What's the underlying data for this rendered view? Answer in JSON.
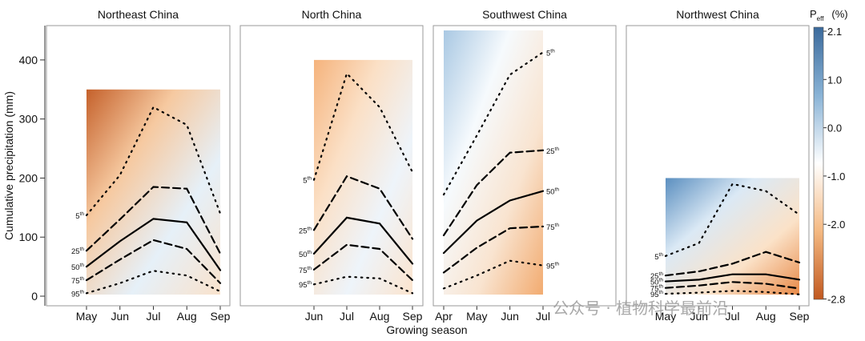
{
  "figure": {
    "ylabel": "Cumulative precipitation (mm)",
    "xlabel": "Growing season",
    "watermark": "公众号 · 植物科学最前沿",
    "yticks": [
      0,
      100,
      200,
      300,
      400
    ]
  },
  "legend": {
    "title_main": "P",
    "title_sub": "eff",
    "title_unit": "(%)",
    "ticks": [
      "2.1",
      "1.0",
      "0.0",
      "-1.0",
      "-2.0",
      "-2.8"
    ],
    "colors": [
      "#3b6a9c",
      "#89b3d6",
      "#ffffff",
      "#f4b982",
      "#c1581f"
    ]
  },
  "chart_data": [
    {
      "type": "line",
      "title": "Northeast China",
      "x": [
        "May",
        "Jun",
        "Jul",
        "Aug",
        "Sep"
      ],
      "ylim": [
        0,
        450
      ],
      "field_y_max": 350,
      "field_colors": [
        "#c5612b",
        "#f6c9a0",
        "#e6f0f8",
        "#f9e2cc"
      ],
      "series": [
        {
          "name": "5th",
          "style": "dotted",
          "values": [
            137,
            205,
            320,
            290,
            140
          ]
        },
        {
          "name": "25th",
          "style": "dashed",
          "values": [
            77,
            130,
            185,
            182,
            72
          ]
        },
        {
          "name": "50th",
          "style": "solid",
          "values": [
            50,
            93,
            131,
            125,
            44
          ]
        },
        {
          "name": "75th",
          "style": "dashed",
          "values": [
            27,
            62,
            95,
            80,
            22
          ]
        },
        {
          "name": "95th",
          "style": "dotted",
          "values": [
            5,
            22,
            43,
            35,
            8
          ]
        }
      ]
    },
    {
      "type": "line",
      "title": "North China",
      "x": [
        "Jun",
        "Jul",
        "Aug",
        "Sep"
      ],
      "ylim": [
        0,
        450
      ],
      "field_y_max": 400,
      "field_colors": [
        "#f5b37c",
        "#fbe0c6",
        "#eef4fa",
        "#fbe4ce"
      ],
      "series": [
        {
          "name": "5th",
          "style": "dotted",
          "values": [
            197,
            377,
            320,
            210
          ]
        },
        {
          "name": "25th",
          "style": "dashed",
          "values": [
            112,
            203,
            182,
            97
          ]
        },
        {
          "name": "50th",
          "style": "solid",
          "values": [
            72,
            133,
            123,
            55
          ]
        },
        {
          "name": "75th",
          "style": "dashed",
          "values": [
            45,
            87,
            80,
            27
          ]
        },
        {
          "name": "95th",
          "style": "dotted",
          "values": [
            20,
            33,
            30,
            5
          ]
        }
      ]
    },
    {
      "type": "line",
      "title": "Southwest China",
      "x": [
        "Apr",
        "May",
        "Jun",
        "Jul"
      ],
      "ylim": [
        0,
        450
      ],
      "field_y_max": 450,
      "field_colors": [
        "#a9c8e3",
        "#f6fafd",
        "#f9e4d0",
        "#f2ab70"
      ],
      "series": [
        {
          "name": "5th",
          "style": "dotted",
          "values": [
            172,
            272,
            375,
            413
          ]
        },
        {
          "name": "25th",
          "style": "dashed",
          "values": [
            103,
            188,
            243,
            247
          ]
        },
        {
          "name": "50th",
          "style": "solid",
          "values": [
            73,
            128,
            162,
            178
          ]
        },
        {
          "name": "75th",
          "style": "dashed",
          "values": [
            40,
            82,
            115,
            118
          ]
        },
        {
          "name": "95th",
          "style": "dotted",
          "values": [
            13,
            35,
            60,
            52
          ]
        }
      ]
    },
    {
      "type": "line",
      "title": "Northwest China",
      "x": [
        "May",
        "Jun",
        "Jul",
        "Aug",
        "Sep"
      ],
      "ylim": [
        0,
        450
      ],
      "field_y_max": 200,
      "field_colors": [
        "#5b8fc0",
        "#dbe9f5",
        "#fbe2c8",
        "#e88a48"
      ],
      "series": [
        {
          "name": "5th",
          "style": "dotted",
          "values": [
            68,
            90,
            190,
            178,
            138
          ]
        },
        {
          "name": "25th",
          "style": "dashed",
          "values": [
            35,
            42,
            55,
            75,
            57
          ]
        },
        {
          "name": "50th",
          "style": "solid",
          "values": [
            25,
            28,
            37,
            37,
            28
          ]
        },
        {
          "name": "75th",
          "style": "dashed",
          "values": [
            14,
            18,
            24,
            21,
            13
          ]
        },
        {
          "name": "95th",
          "style": "dotted",
          "values": [
            4,
            6,
            9,
            7,
            3
          ]
        }
      ]
    }
  ]
}
